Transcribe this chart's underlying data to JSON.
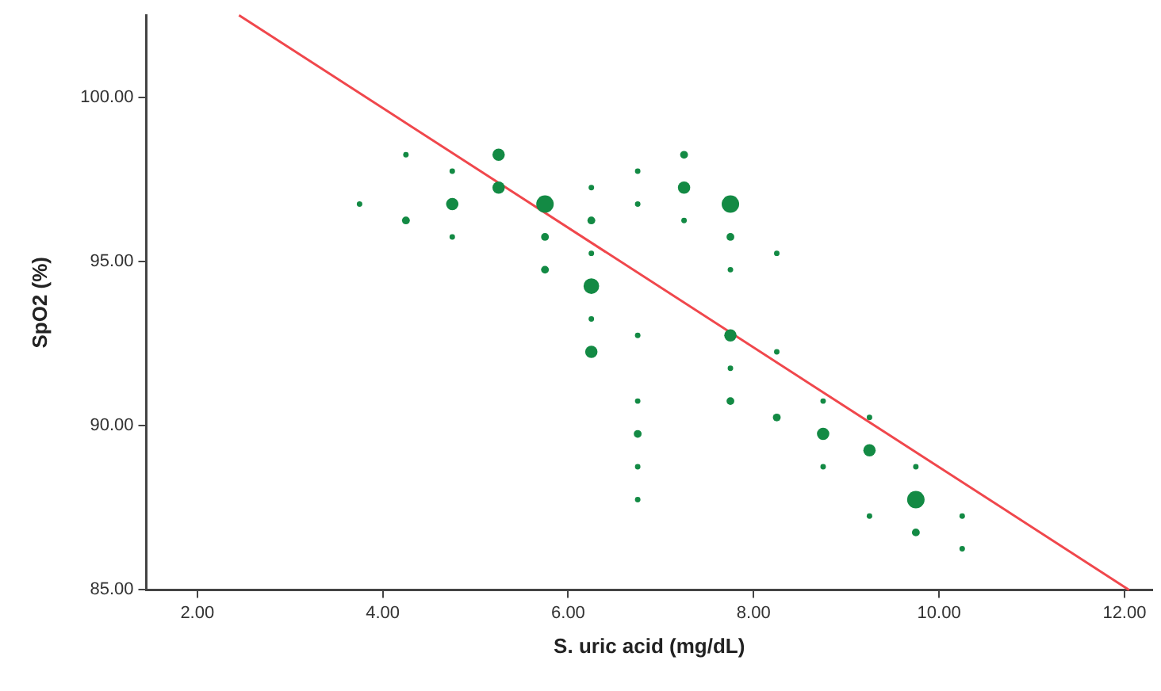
{
  "chart_data": {
    "type": "bubble",
    "xlabel": "S. uric acid (mg/dL)",
    "ylabel": "SpO2 (%)",
    "xlim": [
      1.45,
      12.3
    ],
    "ylim": [
      85,
      102.5
    ],
    "xticks": [
      {
        "value": 2,
        "label": "2.00"
      },
      {
        "value": 4,
        "label": "4.00"
      },
      {
        "value": 6,
        "label": "6.00"
      },
      {
        "value": 8,
        "label": "8.00"
      },
      {
        "value": 10,
        "label": "10.00"
      },
      {
        "value": 12,
        "label": "12.00"
      }
    ],
    "yticks": [
      {
        "value": 85,
        "label": "85.00"
      },
      {
        "value": 90,
        "label": "90.00"
      },
      {
        "value": 95,
        "label": "95.00"
      },
      {
        "value": 100,
        "label": "100.00"
      }
    ],
    "grid": false,
    "legend": false,
    "marker": "circle",
    "series": [
      {
        "color": "#138a44",
        "x": [
          3.75,
          4.25,
          4.25,
          4.75,
          4.75,
          4.75,
          5.25,
          5.25,
          5.75,
          5.75,
          5.75,
          6.25,
          6.25,
          6.25,
          6.25,
          6.25,
          6.25,
          6.75,
          6.75,
          6.75,
          6.75,
          6.75,
          6.75,
          6.75,
          7.25,
          7.25,
          7.25,
          7.75,
          7.75,
          7.75,
          7.75,
          7.75,
          7.75,
          8.25,
          8.25,
          8.25,
          8.75,
          8.75,
          8.75,
          9.25,
          9.25,
          9.25,
          9.75,
          9.75,
          9.75,
          10.25,
          10.25
        ],
        "values": [
          96.75,
          98.25,
          96.25,
          97.75,
          96.75,
          95.75,
          98.25,
          97.25,
          96.75,
          95.75,
          94.75,
          97.25,
          96.25,
          95.25,
          94.25,
          93.25,
          92.25,
          97.75,
          96.75,
          92.75,
          90.75,
          89.75,
          88.75,
          87.75,
          98.25,
          97.25,
          96.25,
          96.75,
          95.75,
          94.75,
          92.75,
          91.75,
          90.75,
          95.25,
          92.25,
          90.25,
          90.75,
          89.75,
          88.75,
          90.25,
          89.25,
          87.25,
          88.75,
          87.75,
          86.75,
          87.25,
          86.25
        ],
        "sizes": [
          0.1,
          0.1,
          0.2,
          0.1,
          0.5,
          0.1,
          0.5,
          0.5,
          1,
          0.2,
          0.2,
          0.1,
          0.2,
          0.1,
          0.8,
          0.1,
          0.5,
          0.1,
          0.1,
          0.1,
          0.1,
          0.2,
          0.1,
          0.1,
          0.2,
          0.5,
          0.1,
          1,
          0.2,
          0.1,
          0.5,
          0.1,
          0.2,
          0.1,
          0.1,
          0.2,
          0.1,
          0.5,
          0.1,
          0.1,
          0.5,
          0.1,
          0.1,
          1,
          0.2,
          0.1,
          0.1
        ]
      },
      {
        "type": "line",
        "color": "#f0474c",
        "marker": "none",
        "line_style": "solid",
        "x": [
          2.45,
          12.05
        ],
        "values": [
          102.5,
          85
        ]
      }
    ]
  }
}
